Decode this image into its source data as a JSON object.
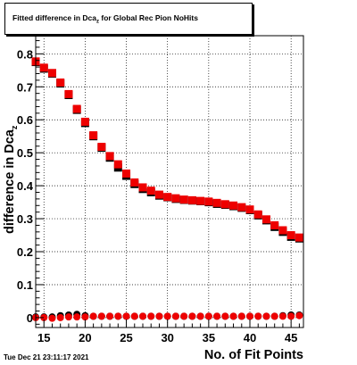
{
  "title_main": "Fitted difference in Dca",
  "title_sub": "z",
  "title_rest": " for Global Rec Pion NoHits",
  "timestamp": "Tue Dec 21 23:11:17 2021",
  "chart_data": {
    "type": "scatter",
    "title": "Fitted difference in Dca_z for Global Rec Pion NoHits",
    "xlabel": "No. of Fit Points",
    "ylabel": "difference in Dca",
    "ylabel_sub": "z",
    "xlim": [
      14,
      46.5
    ],
    "ylim": [
      -0.03,
      0.855
    ],
    "grid": true,
    "x_ticks": [
      15,
      20,
      25,
      30,
      35,
      40,
      45
    ],
    "y_ticks": [
      0,
      0.1,
      0.2,
      0.3,
      0.4,
      0.5,
      0.6,
      0.7,
      0.8
    ],
    "x_tick_labels": [
      "15",
      "20",
      "25",
      "30",
      "35",
      "40",
      "45"
    ],
    "y_tick_labels": [
      "0",
      "0.1",
      "0.2",
      "0.3",
      "0.4",
      "0.5",
      "0.6",
      "0.7",
      "0.8"
    ],
    "series": [
      {
        "color": "#000000",
        "marker": "square",
        "x": [
          14,
          15,
          16,
          17,
          18,
          19,
          20,
          21,
          22,
          23,
          24,
          25,
          26,
          27,
          28,
          29,
          30,
          31,
          32,
          33,
          34,
          35,
          36,
          37,
          38,
          39,
          40,
          41,
          42,
          43,
          44,
          45,
          46
        ],
        "y": [
          0.775,
          0.755,
          0.74,
          0.71,
          0.675,
          0.63,
          0.59,
          0.55,
          0.515,
          0.485,
          0.455,
          0.43,
          0.405,
          0.39,
          0.38,
          0.37,
          0.365,
          0.36,
          0.357,
          0.355,
          0.353,
          0.35,
          0.345,
          0.342,
          0.338,
          0.333,
          0.326,
          0.31,
          0.295,
          0.275,
          0.26,
          0.245,
          0.24
        ]
      },
      {
        "color": "#ee0000",
        "marker": "square",
        "x": [
          14,
          15,
          16,
          17,
          18,
          19,
          20,
          21,
          22,
          23,
          24,
          25,
          26,
          27,
          28,
          29,
          30,
          31,
          32,
          33,
          34,
          35,
          36,
          37,
          38,
          39,
          40,
          41,
          42,
          43,
          44,
          45,
          46
        ],
        "y": [
          0.777,
          0.758,
          0.742,
          0.713,
          0.678,
          0.633,
          0.594,
          0.553,
          0.518,
          0.49,
          0.465,
          0.437,
          0.41,
          0.395,
          0.385,
          0.373,
          0.366,
          0.362,
          0.358,
          0.356,
          0.354,
          0.352,
          0.348,
          0.344,
          0.34,
          0.335,
          0.328,
          0.313,
          0.298,
          0.28,
          0.265,
          0.25,
          0.243
        ]
      },
      {
        "color": "#000000",
        "marker": "circle",
        "x": [
          14,
          15,
          16,
          17,
          18,
          19,
          20,
          21,
          22,
          23,
          24,
          25,
          26,
          27,
          28,
          29,
          30,
          31,
          32,
          33,
          34,
          35,
          36,
          37,
          38,
          39,
          40,
          41,
          42,
          43,
          44,
          45,
          46
        ],
        "y": [
          0.002,
          0.002,
          0.002,
          0.006,
          0.008,
          0.01,
          0.006,
          0.004,
          0.004,
          0.004,
          0.004,
          0.004,
          0.004,
          0.004,
          0.004,
          0.004,
          0.004,
          0.004,
          0.004,
          0.004,
          0.004,
          0.004,
          0.004,
          0.004,
          0.004,
          0.004,
          0.004,
          0.004,
          0.004,
          0.004,
          0.006,
          0.008,
          0.008
        ]
      },
      {
        "color": "#ee0000",
        "marker": "circle",
        "x": [
          14,
          15,
          16,
          17,
          18,
          19,
          20,
          21,
          22,
          23,
          24,
          25,
          26,
          27,
          28,
          29,
          30,
          31,
          32,
          33,
          34,
          35,
          36,
          37,
          38,
          39,
          40,
          41,
          42,
          43,
          44,
          45,
          46
        ],
        "y": [
          0.0,
          0.0,
          -0.002,
          0.0,
          0.002,
          0.002,
          0.002,
          0.004,
          0.004,
          0.004,
          0.004,
          0.004,
          0.004,
          0.004,
          0.004,
          0.004,
          0.004,
          0.004,
          0.004,
          0.004,
          0.004,
          0.004,
          0.004,
          0.004,
          0.004,
          0.004,
          0.004,
          0.004,
          0.004,
          0.004,
          0.004,
          0.004,
          0.006
        ]
      }
    ]
  }
}
